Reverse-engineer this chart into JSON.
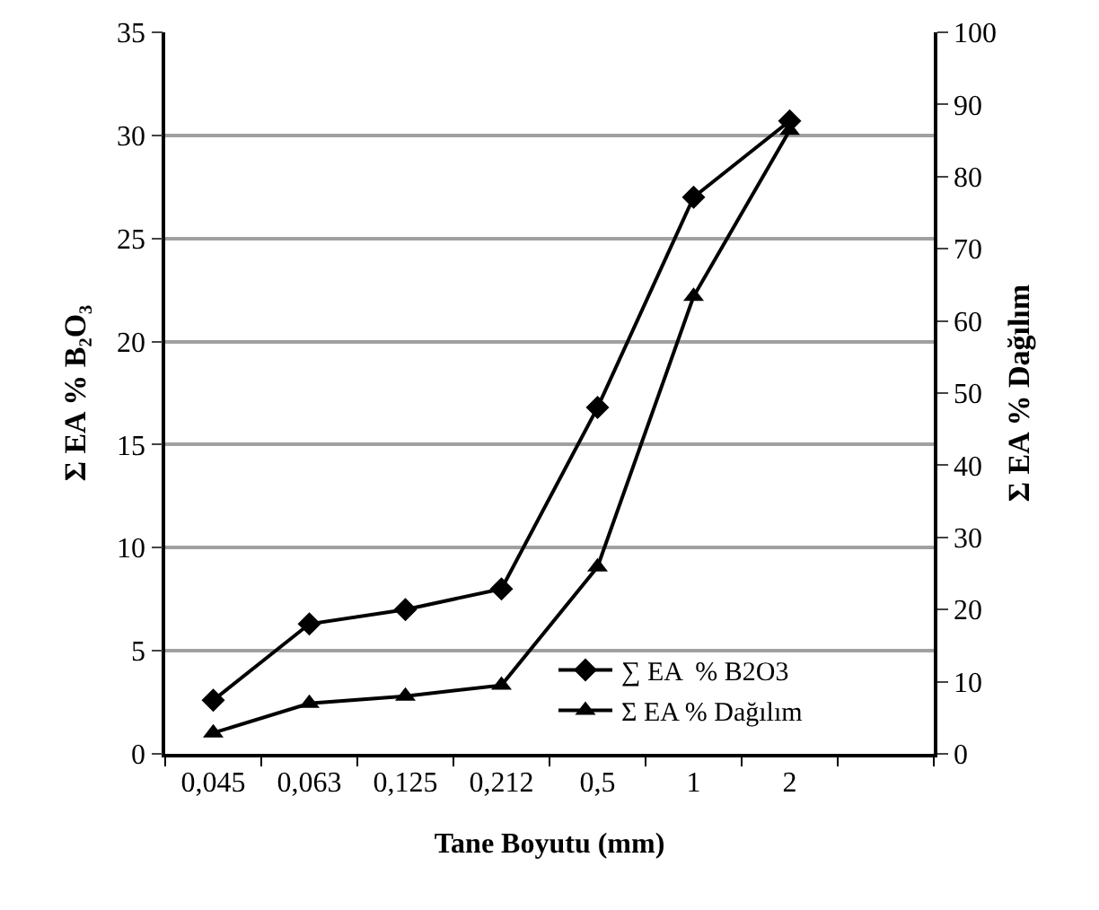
{
  "chart_data": {
    "type": "line",
    "xlabel": "Tane Boyutu (mm)",
    "ylabel": "Σ EA % B₂O₃",
    "y2label": "Σ EA % Dağılım",
    "categories": [
      "0,045",
      "0,063",
      "0,125",
      "0,212",
      "0,5",
      "1",
      "2",
      null
    ],
    "series": [
      {
        "name": "∑ EA  % B2O3",
        "color": "#000000",
        "marker": "diamond",
        "values": [
          2.6,
          6.3,
          7.0,
          8.0,
          16.8,
          27.0,
          30.7,
          null
        ]
      },
      {
        "name": "Σ EA % Dağılım",
        "color": "#000000",
        "marker": "triangle",
        "axis": "y2",
        "values": [
          2.9,
          7.0,
          8.0,
          9.5,
          25.9,
          63.4,
          86.4,
          null
        ]
      }
    ],
    "ylim": [
      0,
      35
    ],
    "yticks": [
      0,
      5,
      10,
      15,
      20,
      25,
      30,
      35
    ],
    "y2lim": [
      0,
      100
    ],
    "y2ticks": [
      0,
      10,
      20,
      30,
      40,
      50,
      60,
      70,
      80,
      90,
      100
    ],
    "grid": "y",
    "legend": "bottom right",
    "line_style": "solid"
  }
}
